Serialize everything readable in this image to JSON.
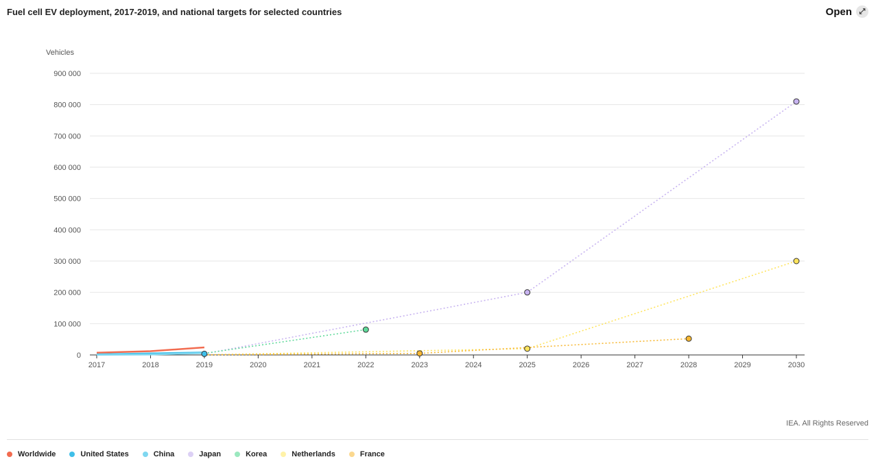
{
  "header": {
    "title": "Fuel cell EV deployment, 2017-2019, and national targets for selected countries",
    "open_label": "Open",
    "open_icon": "expand-arrow-icon"
  },
  "credit": "IEA. All Rights Reserved",
  "chart_data": {
    "type": "line",
    "title": "Fuel cell EV deployment, 2017-2019, and national targets for selected countries",
    "ylabel": "Vehicles",
    "xlabel": "",
    "xlim": [
      2017,
      2030
    ],
    "ylim": [
      0,
      900000
    ],
    "x_ticks": [
      2017,
      2018,
      2019,
      2020,
      2021,
      2022,
      2023,
      2024,
      2025,
      2026,
      2027,
      2028,
      2029,
      2030
    ],
    "y_ticks": [
      0,
      100000,
      200000,
      300000,
      400000,
      500000,
      600000,
      700000,
      800000,
      900000
    ],
    "y_tick_labels": [
      "0",
      "100 000",
      "200 000",
      "300 000",
      "400 000",
      "500 000",
      "600 000",
      "700 000",
      "800 000",
      "900 000"
    ],
    "grid": "horizontal",
    "legend_position": "bottom-left",
    "series": [
      {
        "name": "Worldwide",
        "color": "#f26b4f",
        "style": "solid",
        "points": [
          [
            2017,
            7000
          ],
          [
            2018,
            12000
          ],
          [
            2019,
            24000
          ]
        ]
      },
      {
        "name": "United States",
        "color": "#3fbfe9",
        "style": "solid",
        "points": [
          [
            2017,
            2000
          ],
          [
            2018,
            5000
          ],
          [
            2019,
            8000
          ]
        ]
      },
      {
        "name": "China",
        "color": "#7fd7f0",
        "style": "solid",
        "points": [
          [
            2017,
            500
          ],
          [
            2018,
            1500
          ],
          [
            2019,
            6000
          ]
        ]
      },
      {
        "name": "Japan",
        "color": "#c7b3f0",
        "style": "dotted",
        "points": [
          [
            2019,
            3500
          ],
          [
            2025,
            200000
          ],
          [
            2030,
            810000
          ]
        ],
        "markers": [
          [
            2025,
            200000
          ],
          [
            2030,
            810000
          ]
        ]
      },
      {
        "name": "Korea",
        "color": "#5fd99a",
        "style": "dotted",
        "points": [
          [
            2019,
            5000
          ],
          [
            2022,
            81000
          ]
        ],
        "markers": [
          [
            2022,
            81000
          ]
        ]
      },
      {
        "name": "Netherlands",
        "color": "#ffe45c",
        "style": "dotted",
        "points": [
          [
            2019,
            400
          ],
          [
            2025,
            20000
          ],
          [
            2030,
            300000
          ]
        ],
        "markers": [
          [
            2025,
            20000
          ],
          [
            2030,
            300000
          ]
        ]
      },
      {
        "name": "France",
        "color": "#f7b731",
        "style": "dotted",
        "points": [
          [
            2019,
            300
          ],
          [
            2023,
            5000
          ],
          [
            2028,
            52000
          ]
        ],
        "markers": [
          [
            2023,
            5000
          ],
          [
            2028,
            52000
          ]
        ]
      }
    ]
  },
  "legend": [
    {
      "label": "Worldwide",
      "color": "#f26b4f"
    },
    {
      "label": "United States",
      "color": "#3fbfe9"
    },
    {
      "label": "China",
      "color": "#7fd7f0"
    },
    {
      "label": "Japan",
      "color": "#dcd0f5"
    },
    {
      "label": "Korea",
      "color": "#9be8bf"
    },
    {
      "label": "Netherlands",
      "color": "#fff2a8"
    },
    {
      "label": "France",
      "color": "#fbd88f"
    }
  ]
}
